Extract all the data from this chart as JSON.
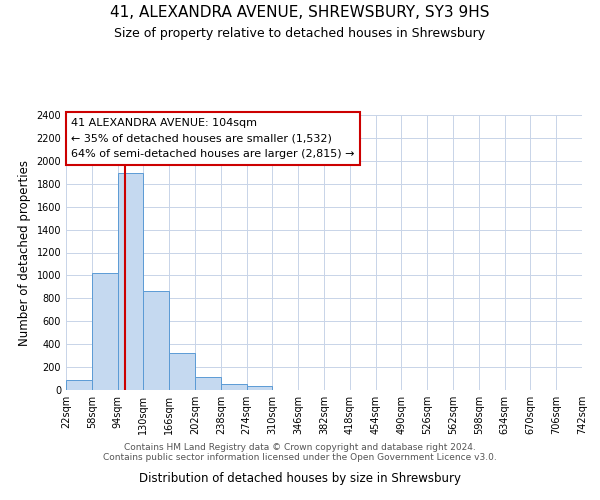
{
  "title": "41, ALEXANDRA AVENUE, SHREWSBURY, SY3 9HS",
  "subtitle": "Size of property relative to detached houses in Shrewsbury",
  "xlabel": "Distribution of detached houses by size in Shrewsbury",
  "ylabel": "Number of detached properties",
  "footer_line1": "Contains HM Land Registry data © Crown copyright and database right 2024.",
  "footer_line2": "Contains public sector information licensed under the Open Government Licence v3.0.",
  "bin_edges": [
    22,
    58,
    94,
    130,
    166,
    202,
    238,
    274,
    310,
    346,
    382,
    418,
    454,
    490,
    526,
    562,
    598,
    634,
    670,
    706,
    742
  ],
  "bin_counts": [
    90,
    1020,
    1890,
    860,
    320,
    115,
    55,
    35,
    0,
    0,
    0,
    0,
    0,
    0,
    0,
    0,
    0,
    0,
    0,
    0
  ],
  "property_size": 104,
  "property_label": "41 ALEXANDRA AVENUE: 104sqm",
  "pct_smaller": 35,
  "n_smaller": 1532,
  "pct_larger_semi": 64,
  "n_larger_semi": 2815,
  "red_line_x": 104,
  "bar_color": "#c5d9f0",
  "bar_edge_color": "#5b9bd5",
  "red_line_color": "#cc0000",
  "bg_color": "#ffffff",
  "grid_color": "#c8d4e8",
  "ylim": [
    0,
    2400
  ],
  "yticks": [
    0,
    200,
    400,
    600,
    800,
    1000,
    1200,
    1400,
    1600,
    1800,
    2000,
    2200,
    2400
  ],
  "annotation_box_color": "#ffffff",
  "annotation_box_edge": "#cc0000",
  "title_fontsize": 11,
  "subtitle_fontsize": 9,
  "axis_label_fontsize": 8.5,
  "tick_fontsize": 7,
  "annotation_fontsize": 8,
  "footer_fontsize": 6.5
}
